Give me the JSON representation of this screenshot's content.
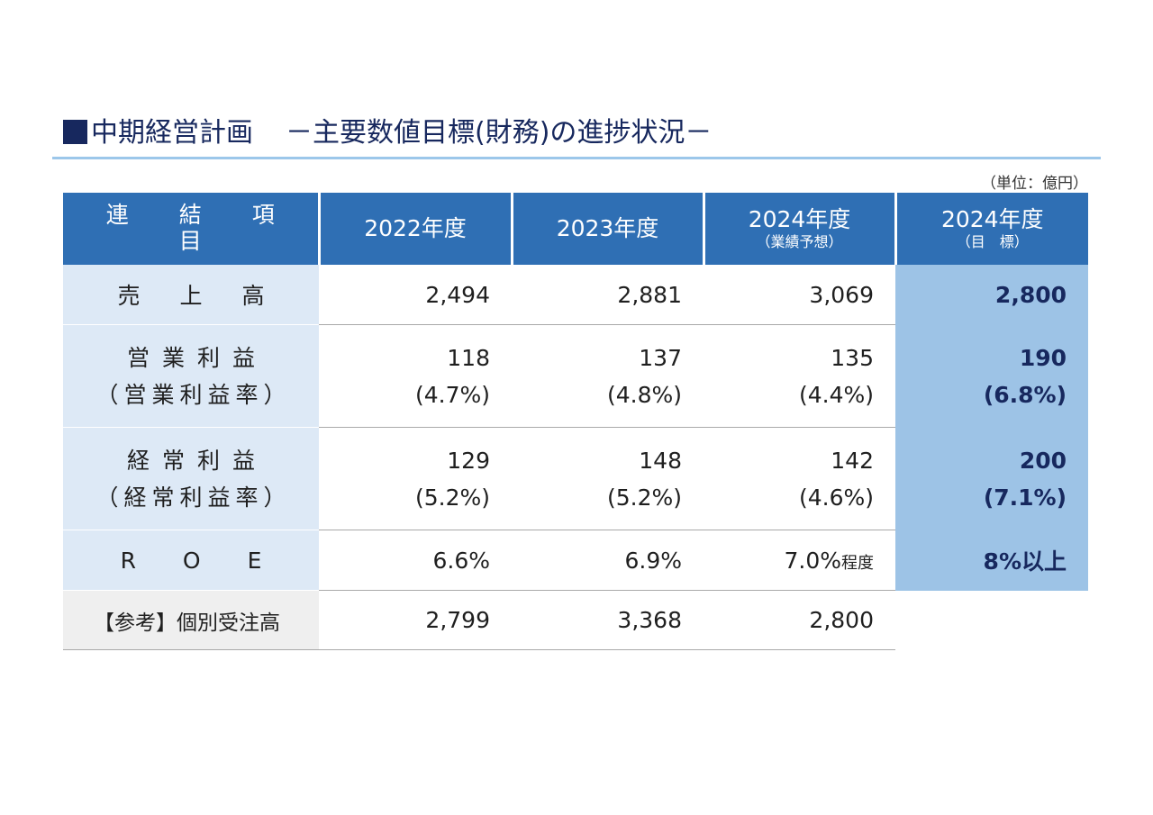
{
  "title": {
    "main": "中期経営計画",
    "sub": "－主要数値目標(財務)の進捗状況－"
  },
  "unit_note": "（単位：億円）",
  "table": {
    "headers": [
      {
        "main": "連 結 項 目",
        "note": ""
      },
      {
        "main": "2022年度",
        "note": ""
      },
      {
        "main": "2023年度",
        "note": ""
      },
      {
        "main": "2024年度",
        "note": "（業績予想）"
      },
      {
        "main": "2024年度",
        "note": "（目　標）"
      }
    ],
    "rows": {
      "sales": {
        "label": "売上高",
        "v2022": "2,494",
        "v2023": "2,881",
        "v2024f": "3,069",
        "target": "2,800"
      },
      "op": {
        "label": "営業利益",
        "sublabel": "（営業利益率）",
        "v2022": "118",
        "r2022": "(4.7%)",
        "v2023": "137",
        "r2023": "(4.8%)",
        "v2024f": "135",
        "r2024f": "(4.4%)",
        "target": "190",
        "rtarget": "(6.8%)"
      },
      "ord": {
        "label": "経常利益",
        "sublabel": "（経常利益率）",
        "v2022": "129",
        "r2022": "(5.2%)",
        "v2023": "148",
        "r2023": "(5.2%)",
        "v2024f": "142",
        "r2024f": "(4.6%)",
        "target": "200",
        "rtarget": "(7.1%)"
      },
      "roe": {
        "label": "ROE",
        "v2022": "6.6%",
        "v2023": "6.9%",
        "v2024f": "7.0%",
        "v2024f_suffix": "程度",
        "target": "8%以上"
      },
      "orders": {
        "label": "【参考】個別受注高",
        "v2022": "2,799",
        "v2023": "3,368",
        "v2024f": "2,800"
      }
    }
  }
}
